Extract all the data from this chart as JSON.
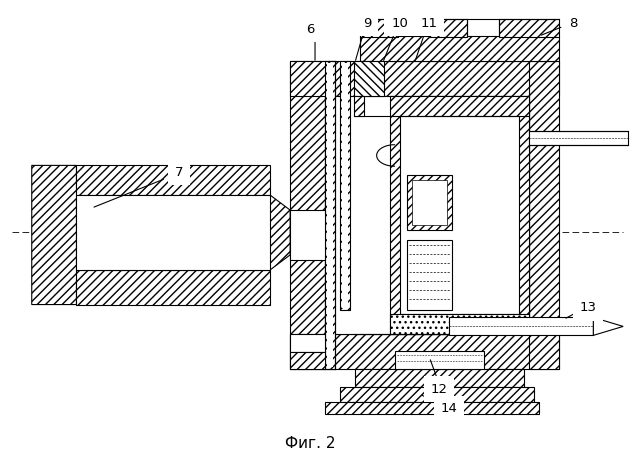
{
  "title": "Фиг. 2",
  "title_fontsize": 11,
  "background_color": "#ffffff",
  "fig_width": 6.4,
  "fig_height": 4.61,
  "dpi": 100
}
